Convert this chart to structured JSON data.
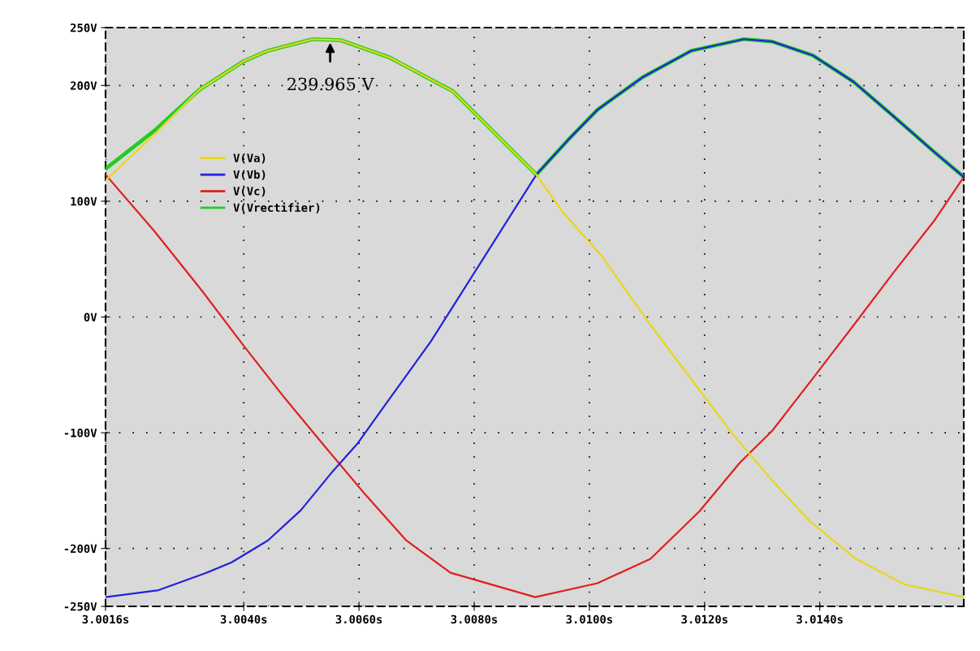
{
  "chart_data": {
    "type": "line",
    "xlim": [
      3.0016,
      3.0165
    ],
    "ylim": [
      -250,
      250
    ],
    "xticks": [
      {
        "value": 3.0016,
        "label": "3.0016s"
      },
      {
        "value": 3.004,
        "label": "3.0040s"
      },
      {
        "value": 3.006,
        "label": "3.0060s"
      },
      {
        "value": 3.008,
        "label": "3.0080s"
      },
      {
        "value": 3.01,
        "label": "3.0100s"
      },
      {
        "value": 3.012,
        "label": "3.0120s"
      },
      {
        "value": 3.014,
        "label": "3.0140s"
      }
    ],
    "yticks": [
      {
        "value": 250,
        "label": "250V"
      },
      {
        "value": 200,
        "label": "200V"
      },
      {
        "value": 100,
        "label": "100V"
      },
      {
        "value": 0,
        "label": "0V"
      },
      {
        "value": -100,
        "label": "-100V"
      },
      {
        "value": -200,
        "label": "-200V"
      },
      {
        "value": -250,
        "label": "-250V"
      }
    ],
    "grid": true,
    "legend": "top left",
    "annotations": [
      {
        "text": "239.965 V",
        "x": 3.0055,
        "y": 239.965
      }
    ],
    "series": [
      {
        "name": "V(Va)",
        "color": "#e6d81a",
        "x": [
          3.0016,
          3.00245,
          3.00322,
          3.004,
          3.00442,
          3.0052,
          3.00569,
          3.00654,
          3.00763,
          3.00908,
          3.00953,
          3.01021,
          3.01106,
          3.01247,
          3.01315,
          3.01384,
          3.01463,
          3.01547,
          3.0165
        ],
        "values": [
          118,
          158,
          196,
          221,
          230,
          240,
          239,
          224,
          195,
          123,
          91,
          53,
          -7,
          -100,
          -140,
          -177,
          -209,
          -231,
          -242
        ]
      },
      {
        "name": "V(Vb)",
        "color": "#2222dd",
        "x": [
          3.0016,
          3.00252,
          3.0033,
          3.00379,
          3.00442,
          3.00499,
          3.00555,
          3.00598,
          3.00654,
          3.00725,
          3.00908,
          3.00965,
          3.01014,
          3.01092,
          3.01177,
          3.01268,
          3.01317,
          3.01388,
          3.01459,
          3.01529,
          3.016,
          3.0165
        ],
        "values": [
          -242,
          -236,
          -222,
          -212,
          -193,
          -167,
          -133,
          -109,
          -70,
          -21,
          123,
          154,
          179,
          207,
          230,
          240,
          238,
          226,
          203,
          173,
          142,
          121
        ]
      },
      {
        "name": "V(Vc)",
        "color": "#e02020",
        "x": [
          3.0016,
          3.00245,
          3.0033,
          3.004,
          3.00471,
          3.00541,
          3.00612,
          3.00682,
          3.00759,
          3.00906,
          3.01014,
          3.01106,
          3.01191,
          3.01261,
          3.01318,
          3.01388,
          3.01459,
          3.01529,
          3.016,
          3.0165
        ],
        "values": [
          123,
          74,
          21,
          -25,
          -70,
          -112,
          -154,
          -193,
          -221,
          -242,
          -230,
          -209,
          -168,
          -126,
          -98,
          -53,
          -7,
          39,
          84,
          121
        ]
      },
      {
        "name": "V(Vrectifier)",
        "color": "#22cc22",
        "x": [
          3.0016,
          3.00245,
          3.00322,
          3.004,
          3.00442,
          3.0052,
          3.00569,
          3.00654,
          3.00763,
          3.00908,
          3.00965,
          3.01014,
          3.01092,
          3.01177,
          3.01268,
          3.01317,
          3.01388,
          3.01459,
          3.01529,
          3.016,
          3.0165
        ],
        "values": [
          128,
          161,
          196,
          221,
          230,
          240,
          239,
          224,
          195,
          123,
          154,
          179,
          207,
          230,
          240,
          238,
          226,
          203,
          173,
          142,
          121
        ]
      }
    ]
  }
}
